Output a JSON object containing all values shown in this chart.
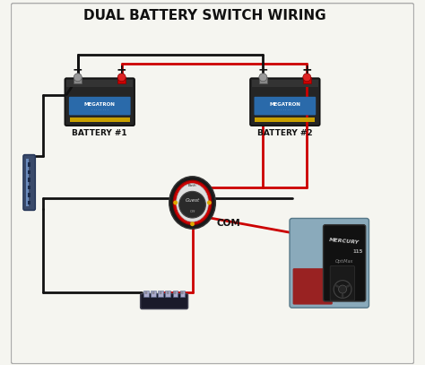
{
  "title": "DUAL BATTERY SWITCH WIRING",
  "title_fontsize": 11,
  "background_color": "#f5f5f0",
  "border_color": "#aaaaaa",
  "battery1_label": "BATTERY #1",
  "battery2_label": "BATTERY #2",
  "switch_label": "Guest",
  "com_label": "COM",
  "wire_black": "#111111",
  "wire_red": "#cc0000",
  "battery_body": "#1a1a1a",
  "battery_case": "#2a2a2a",
  "battery_top_yellow": "#c8a000",
  "battery_top_red": "#cc0000",
  "battery_logo_bg": "#3a7fc1",
  "battery_logo_text": "#ffffff",
  "battery_stripe": "#c8a000",
  "switch_outer": "#1a1a1a",
  "switch_ring": "#cc0000",
  "switch_inner": "#e0e0e0",
  "switch_center": "#2a2a2a",
  "switch_knob": "#888888",
  "bus_bar_dark": "#1a1a2a",
  "bus_bar_blue": "#2244aa",
  "bus_terminal": "#aaaacc",
  "left_panel_color": "#3a4a6a",
  "left_panel_highlight": "#6a8abb",
  "motor_photo_bg": "#6a8aaa",
  "motor_body_dark": "#111111",
  "wire_lw": 2.0,
  "xlim": [
    0,
    10
  ],
  "ylim": [
    0,
    9
  ]
}
